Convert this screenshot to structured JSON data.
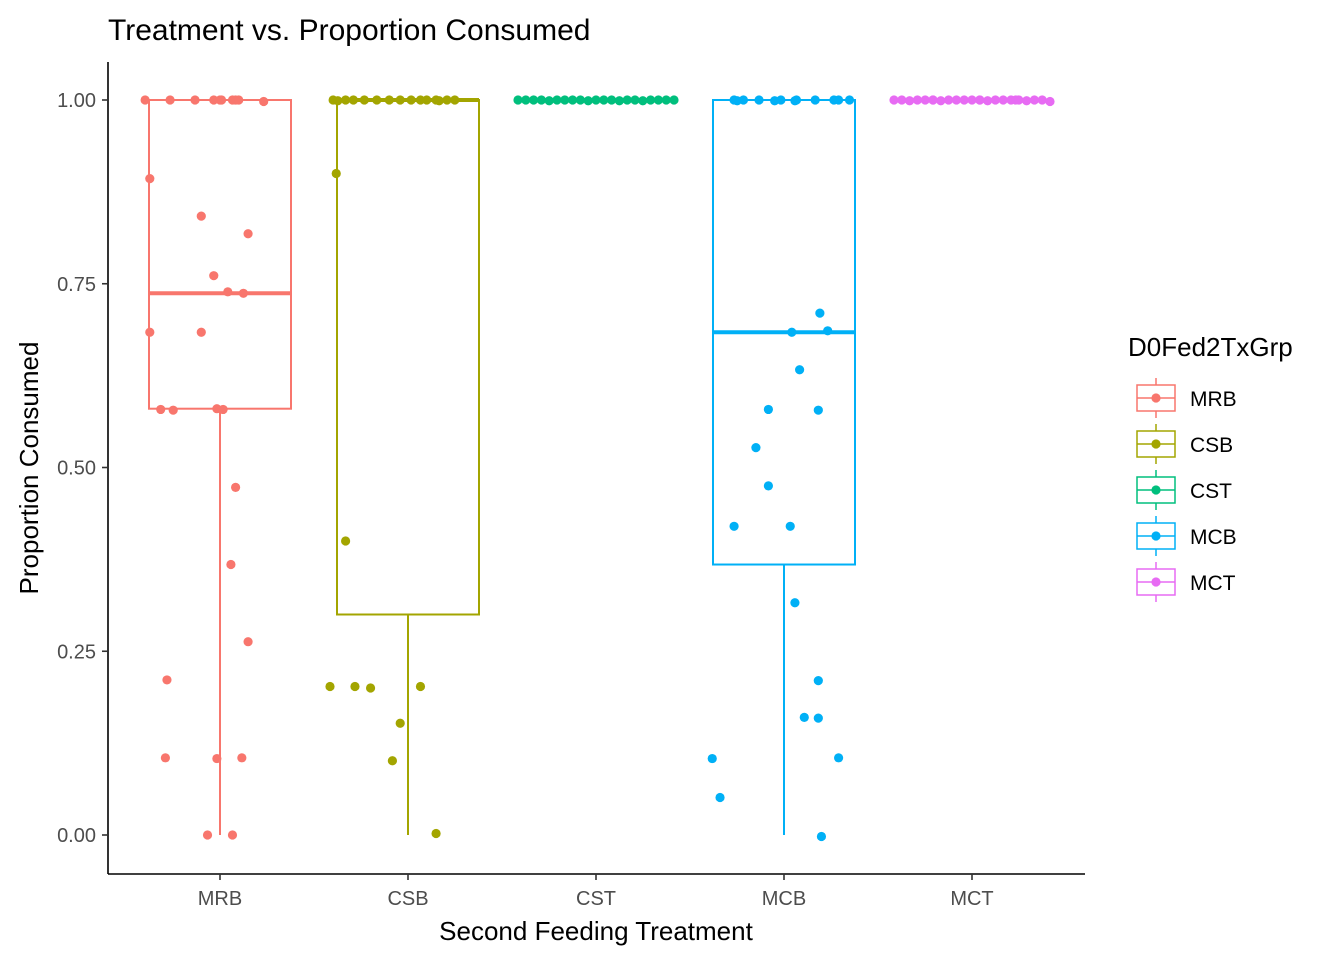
{
  "chart_data": {
    "type": "box",
    "title": "Treatment vs. Proportion Consumed",
    "xlabel": "Second Feeding Treatment",
    "ylabel": "Proportion Consumed",
    "categories": [
      "MRB",
      "CSB",
      "CST",
      "MCB",
      "MCT"
    ],
    "ylim": [
      -0.05,
      1.05
    ],
    "yticks": [
      "0.00",
      "0.25",
      "0.50",
      "0.75",
      "1.00"
    ],
    "yticks_values": [
      0,
      0.25,
      0.5,
      0.75,
      1.0
    ],
    "grid": false,
    "legend": {
      "title": "D0Fed2TxGrp",
      "placement": "right",
      "entries": [
        "MRB",
        "CSB",
        "CST",
        "MCB",
        "MCT"
      ]
    },
    "colors": {
      "MRB": "#F8766D",
      "CSB": "#A3A500",
      "CST": "#00BF7D",
      "MCB": "#00B0F6",
      "MCT": "#E76BF3"
    },
    "boxes": [
      {
        "group": "MRB",
        "min": 0.0,
        "q1": 0.58,
        "median": 0.737,
        "q3": 1.0,
        "max": 1.0
      },
      {
        "group": "CSB",
        "min": 0.0,
        "q1": 0.3,
        "median": 1.0,
        "q3": 1.0,
        "max": 1.0
      },
      {
        "group": "CST",
        "min": 1.0,
        "q1": 1.0,
        "median": 1.0,
        "q3": 1.0,
        "max": 1.0
      },
      {
        "group": "MCB",
        "min": 0.0,
        "q1": 0.368,
        "median": 0.684,
        "q3": 1.0,
        "max": 1.0
      },
      {
        "group": "MCT",
        "min": 1.0,
        "q1": 1.0,
        "median": 1.0,
        "q3": 1.0,
        "max": 1.0
      }
    ],
    "points": [
      {
        "group": "MRB",
        "x": [
          0.02,
          0.18,
          0.34,
          0.46,
          0.5,
          0.51,
          0.58,
          0.6,
          0.62,
          0.78,
          0.05,
          0.38,
          0.68,
          0.46,
          0.05,
          0.38,
          0.55,
          0.65,
          0.12,
          0.2,
          0.48,
          0.52,
          0.6,
          0.57,
          0.68,
          0.16,
          0.64,
          0.48,
          0.15,
          0.42,
          0.58
        ],
        "y": [
          1.0,
          1.0,
          1.0,
          1.0,
          1.0,
          1.0,
          1.0,
          1.0,
          1.0,
          0.998,
          0.893,
          0.842,
          0.818,
          0.761,
          0.684,
          0.684,
          0.739,
          0.737,
          0.579,
          0.578,
          0.58,
          0.579,
          0.473,
          0.368,
          0.263,
          0.211,
          0.105,
          0.104,
          0.105,
          0.0,
          0.0
        ]
      },
      {
        "group": "CSB",
        "x": [
          0.02,
          0.05,
          0.1,
          0.15,
          0.22,
          0.3,
          0.38,
          0.45,
          0.52,
          0.58,
          0.62,
          0.68,
          0.75,
          0.8,
          0.7,
          0.04,
          0.1,
          0.0,
          0.16,
          0.26,
          0.45,
          0.58,
          0.4,
          0.68
        ],
        "y": [
          1.0,
          0.999,
          1.0,
          1.0,
          1.0,
          1.0,
          1.0,
          1.0,
          1.0,
          1.0,
          1.0,
          1.0,
          1.0,
          1.0,
          0.999,
          0.9,
          0.4,
          0.202,
          0.202,
          0.2,
          0.152,
          0.202,
          0.101,
          0.002
        ]
      },
      {
        "group": "CST",
        "x": [
          0.0,
          0.05,
          0.1,
          0.15,
          0.2,
          0.25,
          0.3,
          0.35,
          0.4,
          0.45,
          0.5,
          0.55,
          0.6,
          0.65,
          0.7,
          0.75,
          0.8,
          0.85,
          0.9,
          0.95,
          1.0
        ],
        "y": [
          1.0,
          1.0,
          1.0,
          1.0,
          0.999,
          1.0,
          1.0,
          1.0,
          1.0,
          0.999,
          1.0,
          1.0,
          1.0,
          0.999,
          1.0,
          1.0,
          0.999,
          1.0,
          1.0,
          1.0,
          1.0
        ]
      },
      {
        "group": "MCB",
        "x": [
          0.18,
          0.24,
          0.34,
          0.48,
          0.58,
          0.7,
          0.82,
          0.85,
          0.92,
          0.2,
          0.44,
          0.57,
          0.73,
          0.55,
          0.78,
          0.6,
          0.72,
          0.4,
          0.32,
          0.4,
          0.18,
          0.54,
          0.57,
          0.63,
          0.72,
          0.72,
          0.85,
          0.04,
          0.09,
          0.74
        ],
        "y": [
          1.0,
          1.0,
          1.0,
          1.0,
          1.0,
          1.0,
          1.0,
          1.0,
          1.0,
          0.999,
          0.999,
          0.999,
          0.71,
          0.684,
          0.686,
          0.633,
          0.578,
          0.579,
          0.527,
          0.475,
          0.42,
          0.42,
          0.316,
          0.16,
          0.21,
          0.159,
          0.105,
          0.104,
          0.051,
          -0.002
        ]
      },
      {
        "group": "MCT",
        "x": [
          0.0,
          0.05,
          0.1,
          0.15,
          0.2,
          0.25,
          0.3,
          0.35,
          0.4,
          0.45,
          0.5,
          0.55,
          0.6,
          0.65,
          0.7,
          0.75,
          0.8,
          0.85,
          0.9,
          0.95,
          1.0,
          0.25,
          0.55,
          0.78
        ],
        "y": [
          1.0,
          1.0,
          0.999,
          1.0,
          1.0,
          1.0,
          0.999,
          1.0,
          1.0,
          1.0,
          1.0,
          1.0,
          0.999,
          1.0,
          1.0,
          1.0,
          1.0,
          0.999,
          1.0,
          1.0,
          0.998,
          1.0,
          1.0,
          1.0
        ]
      }
    ]
  }
}
